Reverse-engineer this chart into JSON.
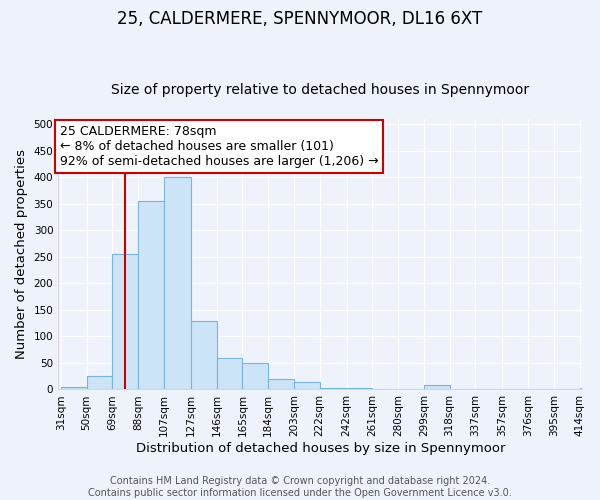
{
  "title": "25, CALDERMERE, SPENNYMOOR, DL16 6XT",
  "subtitle": "Size of property relative to detached houses in Spennymoor",
  "xlabel": "Distribution of detached houses by size in Spennymoor",
  "ylabel": "Number of detached properties",
  "bar_edges": [
    31,
    50,
    69,
    88,
    107,
    127,
    146,
    165,
    184,
    203,
    222,
    242,
    261,
    280,
    299,
    318,
    337,
    357,
    376,
    395,
    414
  ],
  "bar_heights": [
    5,
    25,
    255,
    355,
    400,
    130,
    60,
    50,
    20,
    15,
    3,
    2,
    0,
    0,
    8,
    0,
    0,
    0,
    0,
    0,
    2
  ],
  "bar_color": "#cce4f7",
  "bar_edgecolor": "#7ab4d8",
  "ylim": [
    0,
    510
  ],
  "yticks": [
    0,
    50,
    100,
    150,
    200,
    250,
    300,
    350,
    400,
    450,
    500
  ],
  "property_sqm": 78,
  "vline_color": "#cc0000",
  "annotation_text": "25 CALDERMERE: 78sqm\n← 8% of detached houses are smaller (101)\n92% of semi-detached houses are larger (1,206) →",
  "annotation_box_edgecolor": "#cc0000",
  "annotation_box_facecolor": "#ffffff",
  "footer_line1": "Contains HM Land Registry data © Crown copyright and database right 2024.",
  "footer_line2": "Contains public sector information licensed under the Open Government Licence v3.0.",
  "tick_labels": [
    "31sqm",
    "50sqm",
    "69sqm",
    "88sqm",
    "107sqm",
    "127sqm",
    "146sqm",
    "165sqm",
    "184sqm",
    "203sqm",
    "222sqm",
    "242sqm",
    "261sqm",
    "280sqm",
    "299sqm",
    "318sqm",
    "337sqm",
    "357sqm",
    "376sqm",
    "395sqm",
    "414sqm"
  ],
  "title_fontsize": 12,
  "subtitle_fontsize": 10,
  "axis_label_fontsize": 9.5,
  "tick_fontsize": 7.5,
  "annotation_fontsize": 9,
  "footer_fontsize": 7,
  "background_color": "#eef2fb",
  "plot_bg_color": "#eef2fb",
  "grid_color": "#ffffff"
}
